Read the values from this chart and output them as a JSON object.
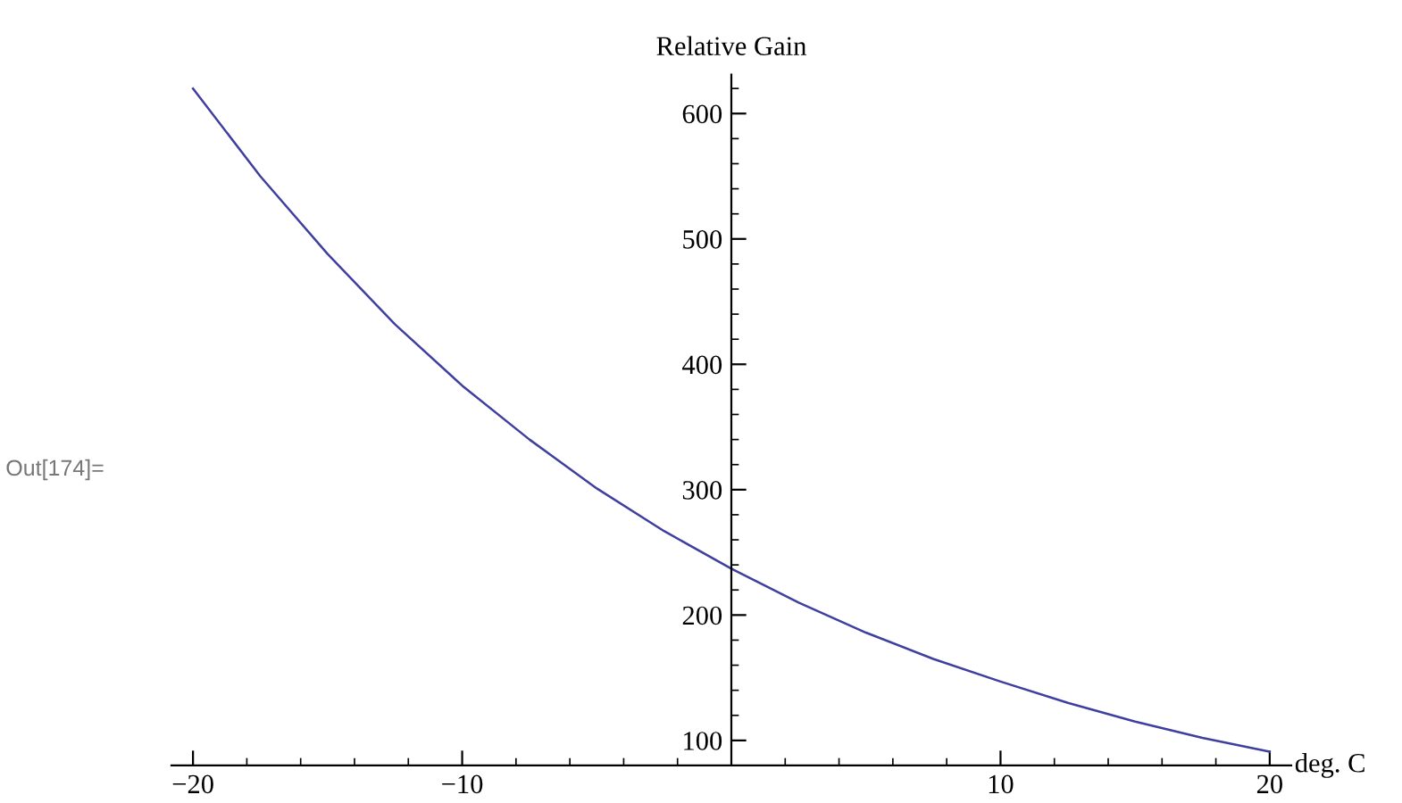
{
  "chart_data": {
    "type": "line",
    "ylabel": "Relative Gain",
    "xlabel": "deg. C",
    "annotations": [
      "Out[174]="
    ],
    "x": [
      -20,
      -17.5,
      -15,
      -12.5,
      -10,
      -7.5,
      -5,
      -2.5,
      0,
      2.5,
      5,
      7.5,
      10,
      12.5,
      15,
      17.5,
      20
    ],
    "series": [
      {
        "color": "#3f3f9f",
        "values": [
          620,
          550,
          488,
          432,
          383,
          340,
          301,
          267,
          237,
          210,
          186,
          165,
          147,
          130,
          115,
          102,
          91
        ]
      }
    ],
    "xlim": [
      -20.8,
      20.8
    ],
    "ylim": [
      80,
      631
    ],
    "xticks": [
      {
        "value": -20,
        "label": "−20"
      },
      {
        "value": -18,
        "label": null
      },
      {
        "value": -16,
        "label": null
      },
      {
        "value": -14,
        "label": null
      },
      {
        "value": -12,
        "label": null
      },
      {
        "value": -10,
        "label": "−10"
      },
      {
        "value": -8,
        "label": null
      },
      {
        "value": -6,
        "label": null
      },
      {
        "value": -4,
        "label": null
      },
      {
        "value": -2,
        "label": null
      },
      {
        "value": 2,
        "label": null
      },
      {
        "value": 4,
        "label": null
      },
      {
        "value": 6,
        "label": null
      },
      {
        "value": 8,
        "label": null
      },
      10,
      {
        "value": 12,
        "label": null
      },
      {
        "value": 14,
        "label": null
      },
      {
        "value": 16,
        "label": null
      },
      {
        "value": 18,
        "label": null
      },
      20
    ],
    "yticks": [
      100,
      {
        "value": 120,
        "label": null
      },
      {
        "value": 140,
        "label": null
      },
      {
        "value": 160,
        "label": null
      },
      {
        "value": 180,
        "label": null
      },
      200,
      {
        "value": 220,
        "label": null
      },
      {
        "value": 240,
        "label": null
      },
      {
        "value": 260,
        "label": null
      },
      {
        "value": 280,
        "label": null
      },
      300,
      {
        "value": 320,
        "label": null
      },
      {
        "value": 340,
        "label": null
      },
      {
        "value": 360,
        "label": null
      },
      {
        "value": 380,
        "label": null
      },
      400,
      {
        "value": 420,
        "label": null
      },
      {
        "value": 440,
        "label": null
      },
      {
        "value": 460,
        "label": null
      },
      {
        "value": 480,
        "label": null
      },
      500,
      {
        "value": 520,
        "label": null
      },
      {
        "value": 540,
        "label": null
      },
      {
        "value": 560,
        "label": null
      },
      {
        "value": 580,
        "label": null
      },
      600,
      {
        "value": 620,
        "label": null
      }
    ],
    "grid": false,
    "legend": false,
    "marker": "none",
    "line_style": "solid"
  }
}
